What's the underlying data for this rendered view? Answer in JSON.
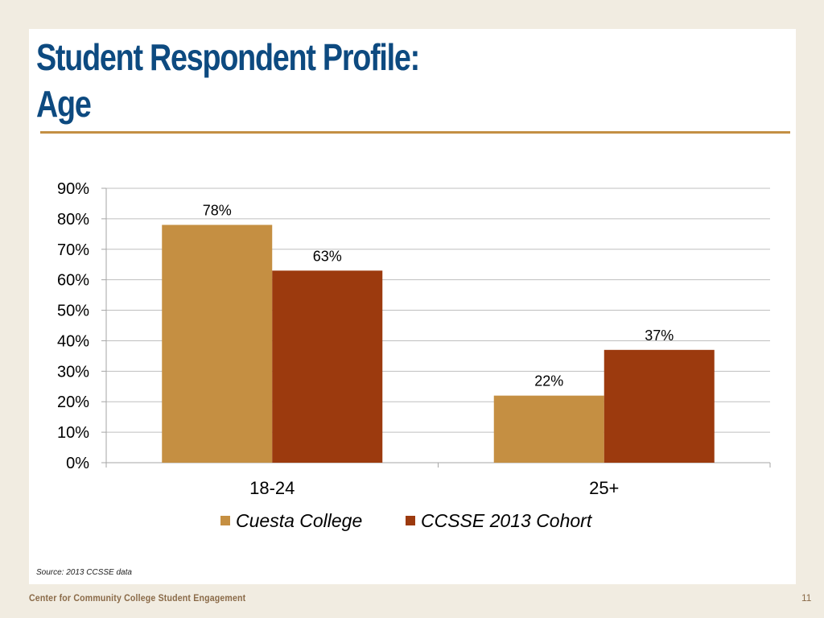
{
  "slide": {
    "title_line1": "Student Respondent Profile:",
    "title_line2": "Age",
    "source": "Source: 2013 CCSSE data",
    "footer_org": "Center for Community College Student Engagement",
    "page_number": "11"
  },
  "colors": {
    "title": "#0d4a80",
    "rule": "#c38f44",
    "cuesta": "#c58f42",
    "ccsse": "#9c3a0e",
    "background": "#f1ece1"
  },
  "chart_data": {
    "type": "bar",
    "categories": [
      "18-24",
      "25+"
    ],
    "series": [
      {
        "name": "Cuesta College",
        "values": [
          78,
          22
        ],
        "labels": [
          "78%",
          "22%"
        ]
      },
      {
        "name": "CCSSE 2013 Cohort",
        "values": [
          63,
          37
        ],
        "labels": [
          "63%",
          "37%"
        ]
      }
    ],
    "ylim": [
      0,
      90
    ],
    "yticks": [
      "0%",
      "10%",
      "20%",
      "30%",
      "40%",
      "50%",
      "60%",
      "70%",
      "80%",
      "90%"
    ],
    "grid": true,
    "legend_position": "bottom"
  }
}
